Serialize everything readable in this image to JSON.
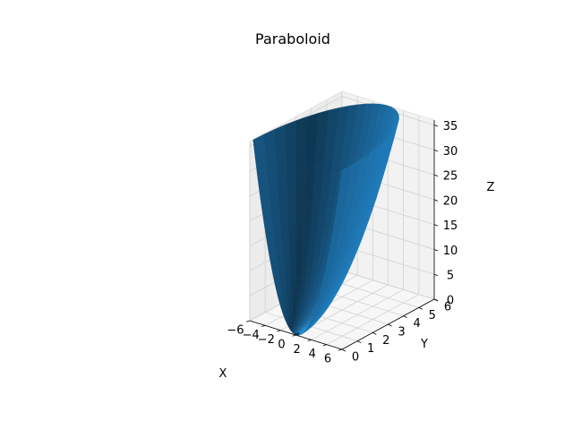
{
  "chart_data": {
    "type": "surface3d",
    "title": "Paraboloid",
    "xlabel": "X",
    "ylabel": "Y",
    "zlabel": "Z",
    "surface": {
      "equation": "z = x^2 + y^2",
      "domain": "polar sector",
      "r_range": [
        0,
        6
      ],
      "theta_range_deg": [
        0,
        270
      ]
    },
    "xlim": [
      -6,
      6
    ],
    "ylim": [
      0,
      6
    ],
    "zlim": [
      0,
      36
    ],
    "xticks": [
      -6,
      -4,
      -2,
      0,
      2,
      4,
      6
    ],
    "yticks": [
      0,
      1,
      2,
      3,
      4,
      5,
      6
    ],
    "zticks": [
      0,
      5,
      10,
      15,
      20,
      25,
      30,
      35
    ],
    "surface_color": "#1f77b4",
    "pane_color": "#f2f2f2",
    "grid": true
  }
}
